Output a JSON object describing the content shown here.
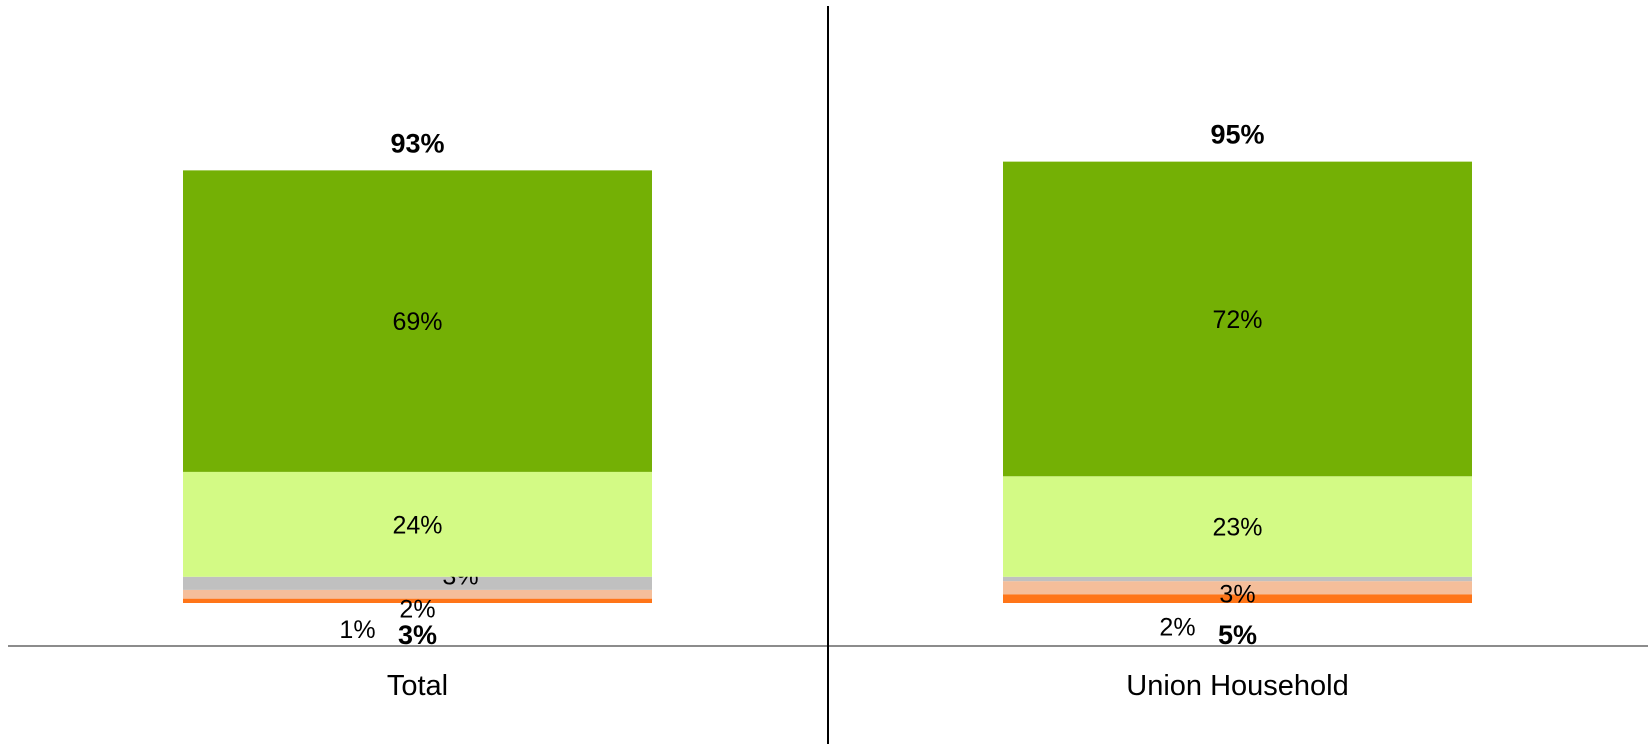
{
  "chart_data": {
    "type": "bar",
    "stacked": true,
    "categories": [
      "Total",
      "Union Household"
    ],
    "series": [
      {
        "values": [
          1,
          2
        ],
        "color": "#ff7518"
      },
      {
        "values": [
          2,
          3
        ],
        "color": "#f5be9a"
      },
      {
        "values": [
          3,
          1
        ],
        "color": "#c0c0c0"
      },
      {
        "values": [
          24,
          23
        ],
        "color": "#d3fa85"
      },
      {
        "values": [
          69,
          72
        ],
        "color": "#74b005"
      }
    ],
    "top_totals": [
      "93%",
      "95%"
    ],
    "bottom_totals": [
      "3%",
      "5%"
    ],
    "ylim": [
      0,
      100
    ],
    "legend": "none",
    "grid": false
  }
}
